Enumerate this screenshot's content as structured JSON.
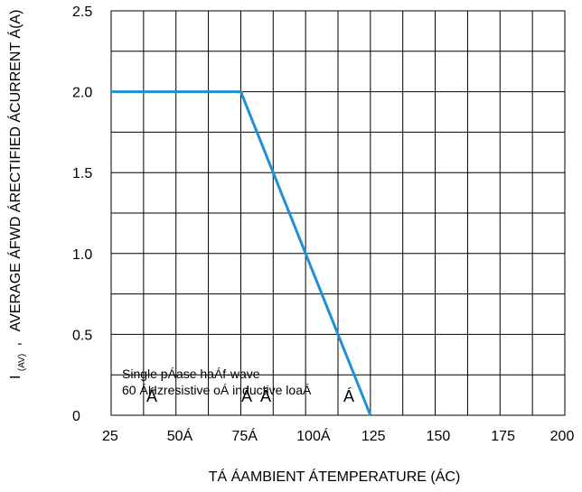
{
  "chart_data": {
    "type": "line",
    "title": "",
    "xlabel": "TÁ ÁAMBIENT ÁTEMPERATURE (ÁC)",
    "ylabel_main": "AVERAGE ÁFWD ÁRECTIFIED ÁCURRENT Á(A)",
    "ylabel_sym": "I",
    "ylabel_sub": "(AV)",
    "ylabel_sep": ",",
    "xlim": [
      25,
      200
    ],
    "ylim": [
      0,
      2.5
    ],
    "x_ticks": [
      25,
      50,
      75,
      100,
      125,
      150,
      175,
      200
    ],
    "x_tick_labels": [
      "25",
      "50Á",
      "75Á",
      "100Á",
      "125",
      "150",
      "175",
      "200"
    ],
    "y_ticks": [
      0,
      0.5,
      1.0,
      1.5,
      2.0,
      2.5
    ],
    "y_tick_labels": [
      "0",
      "0.5",
      "1.0",
      "1.5",
      "2.0",
      "2.5"
    ],
    "grid": true,
    "series": [
      {
        "x": [
          25,
          75,
          125
        ],
        "y": [
          2.0,
          2.0,
          0
        ],
        "color": "#1e90d8"
      }
    ],
    "annotations": {
      "line1": "Single pÁase haÁf-wave",
      "line2": "60 ÁHzresistive oÁ inductive loaÁ",
      "glyph": "Á"
    }
  }
}
